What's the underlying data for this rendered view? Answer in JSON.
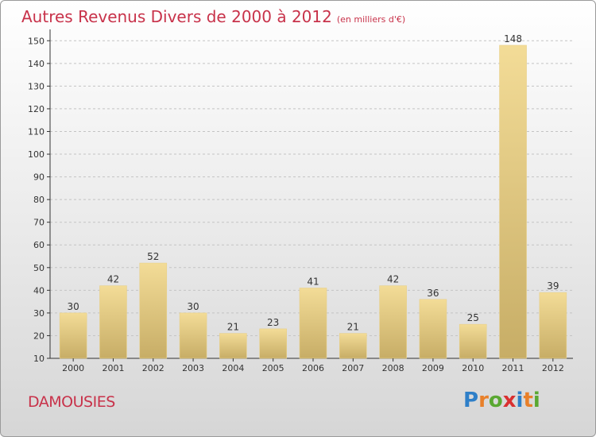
{
  "title": "Autres Revenus Divers de 2000 à 2012",
  "subtitle": "(en milliers d'€)",
  "commune": "DAMOUSIES",
  "logo": {
    "letters": [
      "P",
      "r",
      "o",
      "x",
      "i",
      "t",
      "i"
    ],
    "colors": [
      "#2e7fc8",
      "#e8802a",
      "#5aa832",
      "#d93030",
      "#2e7fc8",
      "#e8802a",
      "#5aa832"
    ]
  },
  "colors": {
    "title": "#c8324a",
    "bar_light": "#f3dc97",
    "bar_dark": "#c7ad66",
    "axis": "#333333"
  },
  "chart_data": {
    "type": "bar",
    "categories": [
      "2000",
      "2001",
      "2002",
      "2003",
      "2004",
      "2005",
      "2006",
      "2007",
      "2008",
      "2009",
      "2010",
      "2011",
      "2012"
    ],
    "values": [
      30,
      42,
      52,
      30,
      21,
      23,
      41,
      21,
      42,
      36,
      25,
      148,
      39
    ],
    "ylim": [
      10,
      155
    ],
    "yticks": [
      10,
      20,
      30,
      40,
      50,
      60,
      70,
      80,
      90,
      100,
      110,
      120,
      130,
      140,
      150
    ],
    "grid": true,
    "legend": "none"
  }
}
